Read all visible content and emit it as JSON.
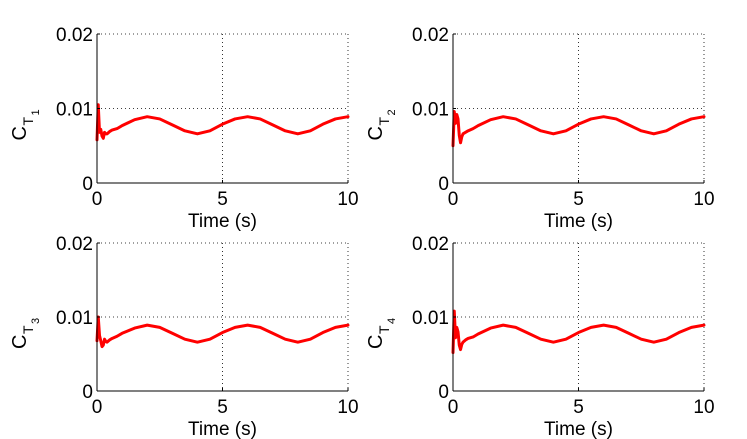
{
  "chart_data": [
    {
      "type": "line",
      "ylabel": {
        "main": "C",
        "sub": "T",
        "index": "1"
      },
      "xlabel": "Time (s)",
      "xlim": [
        0,
        10
      ],
      "ylim": [
        0,
        0.02
      ],
      "xticks": [
        0,
        5,
        10
      ],
      "xtick_labels": [
        "0",
        "5",
        "10"
      ],
      "yticks": [
        0,
        0.01,
        0.02
      ],
      "ytick_labels": [
        "0",
        "0.01",
        "0.02"
      ],
      "grid": true,
      "series": [
        {
          "name": "C_T1",
          "color": "#ff0000",
          "x": [
            0,
            0.05,
            0.1,
            0.15,
            0.2,
            0.25,
            0.3,
            0.35,
            0.4,
            0.5,
            0.6,
            0.8,
            1.0,
            1.5,
            2.0,
            2.5,
            3.0,
            3.5,
            4.0,
            4.5,
            5.0,
            5.5,
            6.0,
            6.5,
            7.0,
            7.5,
            8.0,
            8.5,
            9.0,
            9.5,
            10.0
          ],
          "y": [
            0.0058,
            0.0105,
            0.0068,
            0.0072,
            0.0063,
            0.006,
            0.0068,
            0.0066,
            0.0066,
            0.0069,
            0.0071,
            0.0073,
            0.0077,
            0.0085,
            0.0089,
            0.0086,
            0.0078,
            0.007,
            0.0066,
            0.007,
            0.0079,
            0.0086,
            0.0089,
            0.0086,
            0.0078,
            0.007,
            0.0066,
            0.007,
            0.0079,
            0.0086,
            0.0089
          ]
        }
      ]
    },
    {
      "type": "line",
      "ylabel": {
        "main": "C",
        "sub": "T",
        "index": "2"
      },
      "xlabel": "Time (s)",
      "xlim": [
        0,
        10
      ],
      "ylim": [
        0,
        0.02
      ],
      "xticks": [
        0,
        5,
        10
      ],
      "xtick_labels": [
        "0",
        "5",
        "10"
      ],
      "yticks": [
        0,
        0.01,
        0.02
      ],
      "ytick_labels": [
        "0",
        "0.01",
        "0.02"
      ],
      "grid": true,
      "series": [
        {
          "name": "C_T2",
          "color": "#ff0000",
          "x": [
            0,
            0.05,
            0.1,
            0.15,
            0.2,
            0.25,
            0.3,
            0.35,
            0.4,
            0.5,
            0.6,
            0.8,
            1.0,
            1.5,
            2.0,
            2.5,
            3.0,
            3.5,
            4.0,
            4.5,
            5.0,
            5.5,
            6.0,
            6.5,
            7.0,
            7.5,
            8.0,
            8.5,
            9.0,
            9.5,
            10.0
          ],
          "y": [
            0.005,
            0.0096,
            0.008,
            0.0092,
            0.0086,
            0.0064,
            0.0054,
            0.0062,
            0.0066,
            0.0068,
            0.007,
            0.0073,
            0.0077,
            0.0085,
            0.0089,
            0.0086,
            0.0078,
            0.007,
            0.0066,
            0.007,
            0.0079,
            0.0086,
            0.0089,
            0.0086,
            0.0078,
            0.007,
            0.0066,
            0.007,
            0.0079,
            0.0086,
            0.0089
          ]
        }
      ]
    },
    {
      "type": "line",
      "ylabel": {
        "main": "C",
        "sub": "T",
        "index": "3"
      },
      "xlabel": "Time (s)",
      "xlim": [
        0,
        10
      ],
      "ylim": [
        0,
        0.02
      ],
      "xticks": [
        0,
        5,
        10
      ],
      "xtick_labels": [
        "0",
        "5",
        "10"
      ],
      "yticks": [
        0,
        0.01,
        0.02
      ],
      "ytick_labels": [
        "0",
        "0.01",
        "0.02"
      ],
      "grid": true,
      "series": [
        {
          "name": "C_T3",
          "color": "#ff0000",
          "x": [
            0,
            0.05,
            0.1,
            0.15,
            0.2,
            0.25,
            0.3,
            0.35,
            0.4,
            0.5,
            0.6,
            0.8,
            1.0,
            1.5,
            2.0,
            2.5,
            3.0,
            3.5,
            4.0,
            4.5,
            5.0,
            5.5,
            6.0,
            6.5,
            7.0,
            7.5,
            8.0,
            8.5,
            9.0,
            9.5,
            10.0
          ],
          "y": [
            0.0068,
            0.01,
            0.0075,
            0.0068,
            0.006,
            0.0062,
            0.007,
            0.0067,
            0.0066,
            0.0069,
            0.0071,
            0.0074,
            0.0078,
            0.0085,
            0.0089,
            0.0086,
            0.0078,
            0.007,
            0.0066,
            0.007,
            0.0079,
            0.0086,
            0.0089,
            0.0086,
            0.0078,
            0.007,
            0.0066,
            0.007,
            0.0079,
            0.0086,
            0.0089
          ]
        }
      ]
    },
    {
      "type": "line",
      "ylabel": {
        "main": "C",
        "sub": "T",
        "index": "4"
      },
      "xlabel": "Time (s)",
      "xlim": [
        0,
        10
      ],
      "ylim": [
        0,
        0.02
      ],
      "xticks": [
        0,
        5,
        10
      ],
      "xtick_labels": [
        "0",
        "5",
        "10"
      ],
      "yticks": [
        0,
        0.01,
        0.02
      ],
      "ytick_labels": [
        "0",
        "0.01",
        "0.02"
      ],
      "grid": true,
      "series": [
        {
          "name": "C_T4",
          "color": "#ff0000",
          "x": [
            0,
            0.05,
            0.1,
            0.15,
            0.2,
            0.25,
            0.3,
            0.35,
            0.4,
            0.5,
            0.6,
            0.8,
            1.0,
            1.5,
            2.0,
            2.5,
            3.0,
            3.5,
            4.0,
            4.5,
            5.0,
            5.5,
            6.0,
            6.5,
            7.0,
            7.5,
            8.0,
            8.5,
            9.0,
            9.5,
            10.0
          ],
          "y": [
            0.0052,
            0.0108,
            0.0072,
            0.0086,
            0.008,
            0.0062,
            0.0056,
            0.0063,
            0.0066,
            0.0069,
            0.0071,
            0.0073,
            0.0077,
            0.0085,
            0.0089,
            0.0086,
            0.0078,
            0.007,
            0.0066,
            0.007,
            0.0079,
            0.0086,
            0.0089,
            0.0086,
            0.0078,
            0.007,
            0.0066,
            0.007,
            0.0079,
            0.0086,
            0.0089
          ]
        }
      ]
    }
  ]
}
